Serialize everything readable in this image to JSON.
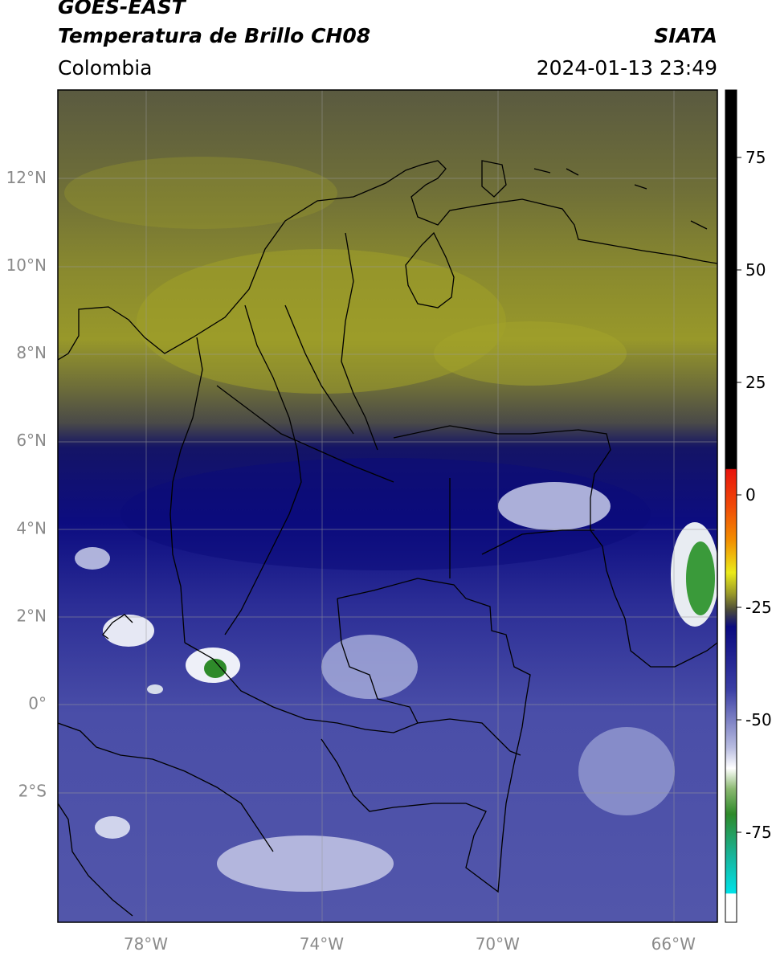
{
  "header": {
    "satellite": "GOES-EAST",
    "product": "Temperatura de Brillo CH08",
    "organization": "SIATA",
    "region": "Colombia",
    "datetime": "2024-01-13 23:49"
  },
  "map": {
    "lon_range": [
      -80,
      -65
    ],
    "lat_range": [
      -5,
      14
    ],
    "lat_ticks": [
      {
        "value": 12,
        "label": "12°N"
      },
      {
        "value": 10,
        "label": "10°N"
      },
      {
        "value": 8,
        "label": "8°N"
      },
      {
        "value": 6,
        "label": "6°N"
      },
      {
        "value": 4,
        "label": "4°N"
      },
      {
        "value": 2,
        "label": "2°N"
      },
      {
        "value": 0,
        "label": "0°"
      },
      {
        "value": -2,
        "label": "2°S"
      }
    ],
    "lon_ticks": [
      {
        "value": -78,
        "label": "78°W"
      },
      {
        "value": -74,
        "label": "74°W"
      },
      {
        "value": -70,
        "label": "70°W"
      },
      {
        "value": -66,
        "label": "66°W"
      }
    ]
  },
  "colorbar": {
    "range": [
      -95,
      90
    ],
    "ticks": [
      {
        "value": 75,
        "label": "75"
      },
      {
        "value": 50,
        "label": "50"
      },
      {
        "value": 25,
        "label": "25"
      },
      {
        "value": 0,
        "label": "0"
      },
      {
        "value": -25,
        "label": "-25"
      },
      {
        "value": -50,
        "label": "-50"
      },
      {
        "value": -75,
        "label": "-75"
      }
    ],
    "colors": {
      "warm_black": "#000000",
      "red": "#e8140c",
      "orange": "#f28c00",
      "yellow": "#eaea1a",
      "olive": "#9a9a28",
      "gray_olive": "#4a4a3a",
      "navy": "#0a0a80",
      "blue": "#3a3ea4",
      "lavender": "#b8bce0",
      "white": "#ffffff",
      "green": "#2e8a2a",
      "teal": "#18b49a",
      "cyan": "#00e2e8"
    }
  }
}
